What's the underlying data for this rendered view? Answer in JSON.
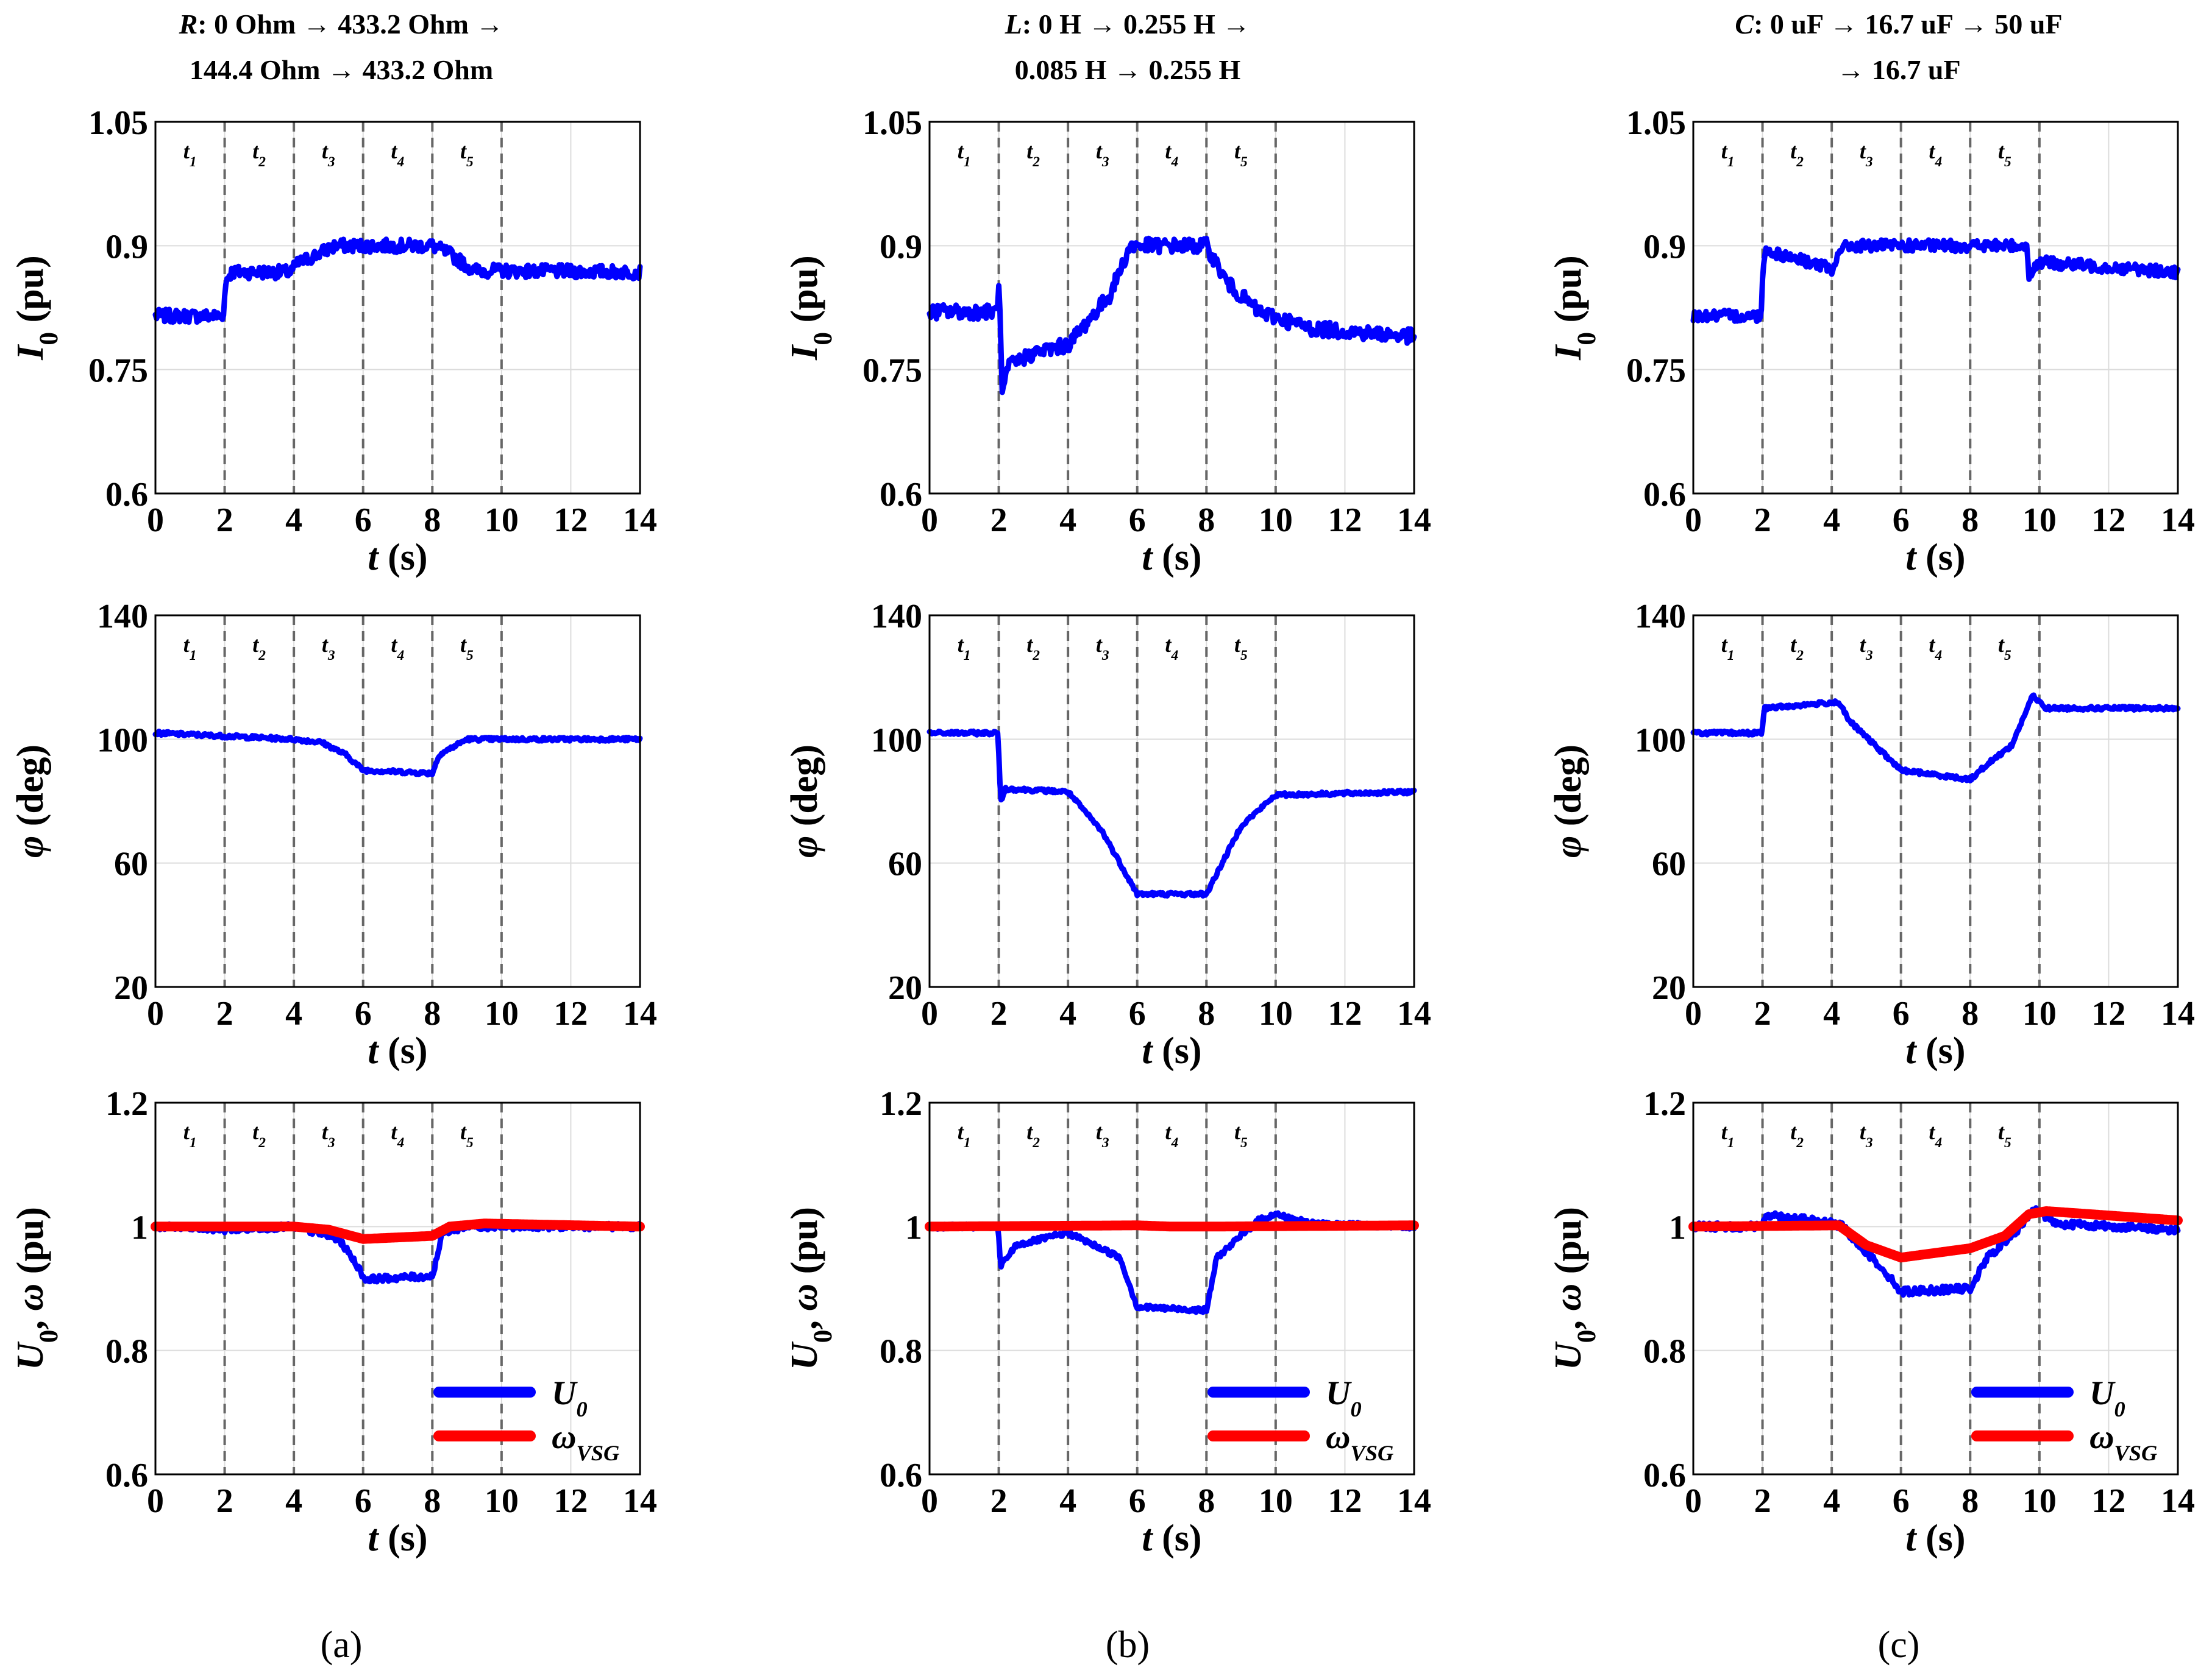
{
  "colors": {
    "u0": "#0000ff",
    "wvsg": "#ff0000",
    "grid": "#dcdcdc",
    "marker": "#666666"
  },
  "columns": [
    {
      "label": "(a)",
      "title_lines": [
        "R: 0 Ohm → 433.2 Ohm →",
        "144.4 Ohm → 433.2 Ohm"
      ]
    },
    {
      "label": "(b)",
      "title_lines": [
        "L: 0 H → 0.255 H →",
        "0.085 H → 0.255 H"
      ]
    },
    {
      "label": "(c)",
      "title_lines": [
        "C: 0 uF → 16.7 uF → 50 uF",
        "→ 16.7 uF"
      ]
    }
  ],
  "chart_data": [
    {
      "type": "line",
      "column": "a",
      "row": "current",
      "ylabel": "I0 (pu)",
      "xlabel": "t (s)",
      "xlim": [
        0,
        14
      ],
      "ylim": [
        0.6,
        1.05
      ],
      "xticks": [
        0,
        2,
        4,
        6,
        8,
        10,
        12,
        14
      ],
      "yticks": [
        "0.6",
        "0.75",
        "0.9",
        "1.05"
      ],
      "markers": [
        2,
        4,
        6,
        8,
        10
      ],
      "marker_labels": [
        "t1",
        "t2",
        "t3",
        "t4",
        "t5"
      ],
      "series": [
        {
          "name": "I0",
          "color": "#0000ff",
          "noise": 0.008,
          "x": [
            0,
            1.95,
            2.05,
            2.2,
            3.9,
            4.1,
            5.2,
            8.0,
            8.5,
            9.2,
            14
          ],
          "y": [
            0.815,
            0.815,
            0.86,
            0.868,
            0.868,
            0.878,
            0.9,
            0.9,
            0.89,
            0.87,
            0.868
          ]
        }
      ]
    },
    {
      "type": "line",
      "column": "a",
      "row": "angle",
      "ylabel": "φ (deg)",
      "xlabel": "t (s)",
      "xlim": [
        0,
        14
      ],
      "ylim": [
        20,
        140
      ],
      "xticks": [
        0,
        2,
        4,
        6,
        8,
        10,
        12,
        14
      ],
      "yticks": [
        "20",
        "60",
        "100",
        "140"
      ],
      "markers": [
        2,
        4,
        6,
        8,
        10
      ],
      "marker_labels": [
        "t1",
        "t2",
        "t3",
        "t4",
        "t5"
      ],
      "series": [
        {
          "name": "φ",
          "color": "#0000ff",
          "noise": 0.6,
          "x": [
            0,
            2,
            4,
            4.8,
            5.5,
            6,
            8,
            8.2,
            9,
            14
          ],
          "y": [
            102,
            101,
            100,
            99,
            95,
            90,
            89,
            95,
            100,
            100
          ]
        }
      ]
    },
    {
      "type": "line",
      "column": "a",
      "row": "voltage",
      "ylabel": "U0, ω (pu)",
      "xlabel": "t (s)",
      "xlim": [
        0,
        14
      ],
      "ylim": [
        0.6,
        1.2
      ],
      "xticks": [
        0,
        2,
        4,
        6,
        8,
        10,
        12,
        14
      ],
      "yticks": [
        "0.6",
        "0.8",
        "1",
        "1.2"
      ],
      "markers": [
        2,
        4,
        6,
        8,
        10
      ],
      "marker_labels": [
        "t1",
        "t2",
        "t3",
        "t4",
        "t5"
      ],
      "legend": {
        "position": "bottom-right",
        "entries": [
          "U0",
          "ωVSG"
        ]
      },
      "series": [
        {
          "name": "U0",
          "color": "#0000ff",
          "noise": 0.005,
          "x": [
            0,
            2,
            4,
            5.3,
            5.8,
            6.05,
            8,
            8.3,
            9,
            14
          ],
          "y": [
            1.0,
            0.995,
            1.0,
            0.98,
            0.94,
            0.915,
            0.92,
            0.99,
            1.0,
            1.0
          ]
        },
        {
          "name": "ωVSG",
          "color": "#ff0000",
          "noise": 0,
          "x": [
            0,
            4,
            5,
            6,
            8,
            8.5,
            9.5,
            14
          ],
          "y": [
            1.0,
            1.0,
            0.995,
            0.98,
            0.985,
            1.0,
            1.005,
            1.0
          ]
        }
      ]
    },
    {
      "type": "line",
      "column": "b",
      "row": "current",
      "ylabel": "I0 (pu)",
      "xlabel": "t (s)",
      "xlim": [
        0,
        14
      ],
      "ylim": [
        0.6,
        1.05
      ],
      "xticks": [
        0,
        2,
        4,
        6,
        8,
        10,
        12,
        14
      ],
      "yticks": [
        "0.6",
        "0.75",
        "0.9",
        "1.05"
      ],
      "markers": [
        2,
        4,
        6,
        8,
        10
      ],
      "marker_labels": [
        "t1",
        "t2",
        "t3",
        "t4",
        "t5"
      ],
      "series": [
        {
          "name": "I0",
          "color": "#0000ff",
          "noise": 0.009,
          "x": [
            0,
            1.95,
            2.0,
            2.1,
            2.3,
            3,
            4,
            5.2,
            5.8,
            8.0,
            8.6,
            9.5,
            11,
            14
          ],
          "y": [
            0.82,
            0.82,
            0.86,
            0.72,
            0.755,
            0.77,
            0.78,
            0.84,
            0.9,
            0.9,
            0.855,
            0.82,
            0.8,
            0.79
          ]
        }
      ]
    },
    {
      "type": "line",
      "column": "b",
      "row": "angle",
      "ylabel": "φ (deg)",
      "xlabel": "t (s)",
      "xlim": [
        0,
        14
      ],
      "ylim": [
        20,
        140
      ],
      "xticks": [
        0,
        2,
        4,
        6,
        8,
        10,
        12,
        14
      ],
      "yticks": [
        "20",
        "60",
        "100",
        "140"
      ],
      "markers": [
        2,
        4,
        6,
        8,
        10
      ],
      "marker_labels": [
        "t1",
        "t2",
        "t3",
        "t4",
        "t5"
      ],
      "series": [
        {
          "name": "φ",
          "color": "#0000ff",
          "noise": 0.6,
          "x": [
            0,
            1.98,
            2.05,
            2.2,
            4,
            5,
            6,
            8,
            9,
            10,
            14
          ],
          "y": [
            102,
            102,
            80,
            84,
            83,
            70,
            50,
            50,
            72,
            82,
            83
          ]
        }
      ]
    },
    {
      "type": "line",
      "column": "b",
      "row": "voltage",
      "ylabel": "U0, ω (pu)",
      "xlabel": "t (s)",
      "xlim": [
        0,
        14
      ],
      "ylim": [
        0.6,
        1.2
      ],
      "xticks": [
        0,
        2,
        4,
        6,
        8,
        10,
        12,
        14
      ],
      "yticks": [
        "0.6",
        "0.8",
        "1",
        "1.2"
      ],
      "markers": [
        2,
        4,
        6,
        8,
        10
      ],
      "marker_labels": [
        "t1",
        "t2",
        "t3",
        "t4",
        "t5"
      ],
      "legend": {
        "position": "bottom-right",
        "entries": [
          "U0",
          "ωVSG"
        ]
      },
      "series": [
        {
          "name": "U0",
          "color": "#0000ff",
          "noise": 0.004,
          "x": [
            0,
            1.98,
            2.05,
            2.5,
            4,
            5.5,
            6,
            8,
            8.3,
            9.5,
            10,
            11,
            14
          ],
          "y": [
            1.0,
            1.0,
            0.935,
            0.97,
            0.99,
            0.95,
            0.87,
            0.865,
            0.95,
            1.01,
            1.02,
            1.005,
            1.0
          ]
        },
        {
          "name": "ωVSG",
          "color": "#ff0000",
          "noise": 0,
          "x": [
            0,
            6,
            7,
            8,
            14
          ],
          "y": [
            1.0,
            1.002,
            1.0,
            1.0,
            1.002
          ]
        }
      ]
    },
    {
      "type": "line",
      "column": "c",
      "row": "current",
      "ylabel": "I0 (pu)",
      "xlabel": "t (s)",
      "xlim": [
        0,
        14
      ],
      "ylim": [
        0.6,
        1.05
      ],
      "xticks": [
        0,
        2,
        4,
        6,
        8,
        10,
        12,
        14
      ],
      "yticks": [
        "0.6",
        "0.75",
        "0.9",
        "1.05"
      ],
      "markers": [
        2,
        4,
        6,
        8,
        10
      ],
      "marker_labels": [
        "t1",
        "t2",
        "t3",
        "t4",
        "t5"
      ],
      "series": [
        {
          "name": "I0",
          "color": "#0000ff",
          "noise": 0.007,
          "x": [
            0,
            1.95,
            2.05,
            3.8,
            4.0,
            4.2,
            4.5,
            9.65,
            9.7,
            10,
            14
          ],
          "y": [
            0.815,
            0.815,
            0.895,
            0.875,
            0.865,
            0.895,
            0.9,
            0.9,
            0.865,
            0.88,
            0.868
          ]
        }
      ]
    },
    {
      "type": "line",
      "column": "c",
      "row": "angle",
      "ylabel": "φ (deg)",
      "xlabel": "t (s)",
      "xlim": [
        0,
        14
      ],
      "ylim": [
        20,
        140
      ],
      "xticks": [
        0,
        2,
        4,
        6,
        8,
        10,
        12,
        14
      ],
      "yticks": [
        "20",
        "60",
        "100",
        "140"
      ],
      "markers": [
        2,
        4,
        6,
        8,
        10
      ],
      "marker_labels": [
        "t1",
        "t2",
        "t3",
        "t4",
        "t5"
      ],
      "series": [
        {
          "name": "φ",
          "color": "#0000ff",
          "noise": 0.6,
          "x": [
            0,
            1.98,
            2.05,
            4.2,
            4.5,
            6,
            8,
            8.5,
            9.2,
            9.5,
            9.8,
            10.2,
            14
          ],
          "y": [
            102,
            102,
            110,
            112,
            106,
            90,
            87,
            92,
            98,
            106,
            114,
            110,
            110
          ]
        }
      ]
    },
    {
      "type": "line",
      "column": "c",
      "row": "voltage",
      "ylabel": "U0, ω (pu)",
      "xlabel": "t (s)",
      "xlim": [
        0,
        14
      ],
      "ylim": [
        0.6,
        1.2
      ],
      "xticks": [
        0,
        2,
        4,
        6,
        8,
        10,
        12,
        14
      ],
      "yticks": [
        "0.6",
        "0.8",
        "1",
        "1.2"
      ],
      "markers": [
        2,
        4,
        6,
        8,
        10
      ],
      "marker_labels": [
        "t1",
        "t2",
        "t3",
        "t4",
        "t5"
      ],
      "legend": {
        "position": "bottom-right",
        "entries": [
          "U0",
          "ωVSG"
        ]
      },
      "series": [
        {
          "name": "U0",
          "color": "#0000ff",
          "noise": 0.006,
          "x": [
            0,
            1.98,
            2.1,
            4,
            4.3,
            5.5,
            6,
            8,
            8.5,
            9.5,
            9.8,
            10.5,
            14
          ],
          "y": [
            1.0,
            1.0,
            1.02,
            1.005,
            1.0,
            0.93,
            0.895,
            0.9,
            0.95,
            1.0,
            1.03,
            1.005,
            0.995
          ]
        },
        {
          "name": "ωVSG",
          "color": "#ff0000",
          "noise": 0,
          "x": [
            0,
            4.2,
            5,
            6,
            8,
            9,
            9.7,
            10.2,
            14
          ],
          "y": [
            1.0,
            1.002,
            0.97,
            0.95,
            0.965,
            0.985,
            1.02,
            1.025,
            1.01
          ]
        }
      ]
    }
  ]
}
